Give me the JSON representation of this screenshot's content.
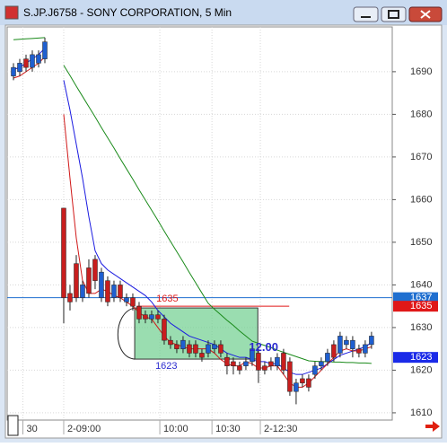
{
  "window": {
    "title": "S.JP.J6758 - SONY CORPORATION, 5 Min"
  },
  "chart_data": {
    "type": "candlestick",
    "open": [
      1689,
      1690,
      1693,
      1691,
      1692,
      1693,
      null,
      null,
      1658,
      1638,
      1645,
      1637,
      1644,
      1646,
      1637,
      1641,
      1637,
      1640,
      1636,
      1637,
      1635,
      1633,
      1632,
      1633,
      1632,
      1627,
      1626,
      1625,
      1626,
      1626,
      1624,
      1624,
      1625,
      1626,
      1623,
      1622,
      1621,
      1621,
      1622,
      1624,
      1621,
      1622,
      1621,
      1624,
      1622,
      1615,
      1618,
      1618,
      1619,
      1621,
      1622,
      1626,
      1624,
      1626,
      1625,
      1625,
      1624,
      1626
    ],
    "high": [
      1692,
      1693,
      1694,
      1695,
      1695,
      1698,
      null,
      null,
      1658,
      1640,
      1647,
      1641,
      1646,
      1647,
      1644,
      1642,
      1641,
      1641,
      1638,
      1638,
      1636,
      1634,
      1634,
      1634,
      1633,
      1628,
      1627,
      1628,
      1627,
      1627,
      1625,
      1627,
      1627,
      1627,
      1624,
      1623,
      1622,
      1623,
      1626,
      1625,
      1622,
      1623,
      1624,
      1625,
      1623,
      1618,
      1619,
      1619,
      1622,
      1623,
      1625,
      1627,
      1629,
      1628,
      1628,
      1626,
      1627,
      1629
    ],
    "low": [
      1688,
      1689,
      1690,
      1690,
      1691,
      1692,
      null,
      null,
      1631,
      1634,
      1636,
      1636,
      1637,
      1639,
      1636,
      1635,
      1636,
      1636,
      1635,
      1634,
      1631,
      1631,
      1631,
      1631,
      1626,
      1625,
      1624,
      1624,
      1623,
      1623,
      1622,
      1623,
      1624,
      1623,
      1619,
      1619,
      1619,
      1620,
      1621,
      1617,
      1619,
      1620,
      1620,
      1619,
      1614,
      1612,
      1616,
      1615,
      1618,
      1620,
      1621,
      1622,
      1623,
      1625,
      1623,
      1623,
      1623,
      1625
    ],
    "close": [
      1691,
      1692,
      1691,
      1694,
      1694,
      1697,
      null,
      null,
      1637,
      1636,
      1637,
      1640,
      1638,
      1641,
      1643,
      1636,
      1640,
      1637,
      1637,
      1635,
      1632,
      1632,
      1633,
      1632,
      1627,
      1626,
      1625,
      1627,
      1624,
      1624,
      1623,
      1626,
      1626,
      1624,
      1621,
      1621,
      1620,
      1622,
      1625,
      1620,
      1620,
      1621,
      1623,
      1620,
      1615,
      1617,
      1617,
      1616,
      1621,
      1622,
      1624,
      1623,
      1628,
      1627,
      1627,
      1624,
      1626,
      1628
    ],
    "up_color": "#1f5fd0",
    "down_color": "#c81e1e",
    "lines": [
      {
        "color": "#1a8a1a",
        "values": [
          1697.5,
          1697.6,
          1697.7,
          1697.8,
          1697.9,
          1698,
          null,
          null,
          1691.5,
          1689.1,
          1686.6,
          1684.2,
          1681.8,
          1679.4,
          1676.9,
          1674.5,
          1672.1,
          1669.6,
          1667.2,
          1664.8,
          1662.3,
          1659.9,
          1657.5,
          1655.1,
          1652.6,
          1650.2,
          1647.8,
          1645.4,
          1642.9,
          1640.5,
          1638.1,
          1635.7,
          1634.3,
          1633,
          1631.7,
          1630.5,
          1629.2,
          1628,
          1626.8,
          1626.3,
          1625.8,
          1625.3,
          1624.7,
          1624.2,
          1623.7,
          1623.2,
          1622.7,
          1622.2,
          1622.1,
          1622,
          1622,
          1621.9,
          1621.9,
          1621.8,
          1621.8,
          1621.7,
          1621.7,
          1621.6
        ]
      },
      {
        "color": "#1a1ae0",
        "values": [
          1690.5,
          1691,
          1692,
          1693,
          1694,
          1695.5,
          null,
          null,
          1688,
          1681,
          1673,
          1665,
          1656,
          1648,
          1645,
          1643.5,
          1642.5,
          1641.5,
          1640.5,
          1639.5,
          1638.5,
          1637.5,
          1636,
          1634,
          1632.5,
          1631,
          1630,
          1629,
          1628,
          1627.5,
          1627,
          1626.5,
          1626,
          1625,
          1624,
          1623.5,
          1623,
          1623,
          1622.5,
          1622,
          1622,
          1621.5,
          1621.5,
          1620.5,
          1619.5,
          1619,
          1619,
          1619.5,
          1620,
          1620.5,
          1621.5,
          1622.5,
          1623.5,
          1624,
          1624.5,
          1625,
          1625.5,
          1626.5
        ]
      },
      {
        "color": "#d01818",
        "values": [
          1688.5,
          1689,
          1690,
          1691,
          1692,
          1693.5,
          null,
          null,
          1680,
          1665,
          1651,
          1641,
          1638,
          1638,
          1639,
          1638.5,
          1637.5,
          1637,
          1636,
          1635,
          1633.5,
          1632.5,
          1632,
          1630,
          1628,
          1626.5,
          1626,
          1625.5,
          1625,
          1625,
          1625,
          1625,
          1624,
          1622.5,
          1621.5,
          1621,
          1621,
          1622,
          1621.5,
          1620.5,
          1620.5,
          1621,
          1621,
          1619,
          1617,
          1616,
          1616,
          1617,
          1618.5,
          1620,
          1621.5,
          1623,
          1624.5,
          1625,
          1624.5,
          1624.5,
          1625,
          1625.5
        ]
      }
    ],
    "price_lines": [
      {
        "value": 1637,
        "color": "#1f6fd0"
      },
      {
        "value": 1635,
        "color": "#e01818",
        "x0": 19.6,
        "x1": 43.9
      },
      {
        "value": 1623,
        "color": "#1a2ae8"
      }
    ],
    "zone": {
      "x0": 19.3,
      "x1": 38.9,
      "y0": 1622.6,
      "y1": 1634.6,
      "color": "#6fcf8f"
    },
    "zone_label": "1623",
    "overlay_text": "12.00",
    "xlim": [
      -1,
      60.3
    ],
    "xticks": [
      {
        "value": 1.5,
        "label": "30"
      },
      {
        "value": 8,
        "label": "2-09:00"
      },
      {
        "value": 23.3,
        "label": "10:00"
      },
      {
        "value": 31.6,
        "label": "10:30"
      },
      {
        "value": 39.3,
        "label": "2-12:30"
      }
    ],
    "ylim": [
      1608.3,
      1700.5
    ],
    "yticks": [
      1610,
      1620,
      1630,
      1640,
      1650,
      1660,
      1670,
      1680,
      1690
    ],
    "grid": true
  }
}
